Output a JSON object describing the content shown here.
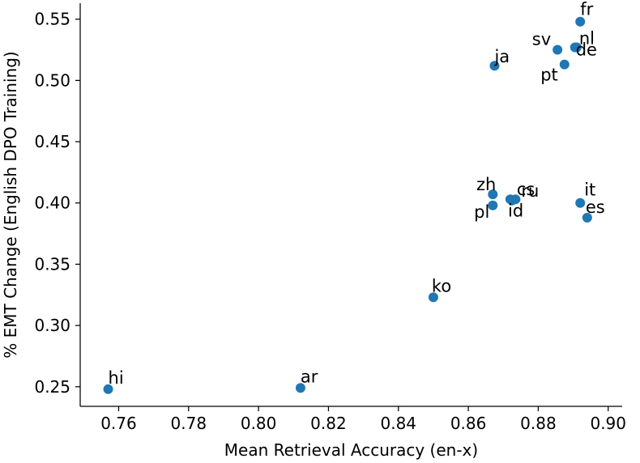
{
  "chart_data": {
    "type": "scatter",
    "title": "",
    "xlabel": "Mean Retrieval Accuracy (en-x)",
    "ylabel": "% EMT Change (English DPO Training)",
    "xlim": [
      0.749,
      0.904
    ],
    "ylim": [
      0.234,
      0.563
    ],
    "xticks": [
      "0.76",
      "0.78",
      "0.80",
      "0.82",
      "0.84",
      "0.86",
      "0.88",
      "0.90"
    ],
    "yticks": [
      "0.25",
      "0.30",
      "0.35",
      "0.40",
      "0.45",
      "0.50",
      "0.55"
    ],
    "grid": false,
    "marker_color": "#1f77b4",
    "points": [
      {
        "label": "fr",
        "x": 0.892,
        "y": 0.548
      },
      {
        "label": "nl",
        "x": 0.891,
        "y": 0.527
      },
      {
        "label": "sv",
        "x": 0.8855,
        "y": 0.525
      },
      {
        "label": "de",
        "x": 0.8905,
        "y": 0.527
      },
      {
        "label": "pt",
        "x": 0.8875,
        "y": 0.513
      },
      {
        "label": "ja",
        "x": 0.8675,
        "y": 0.512
      },
      {
        "label": "zh",
        "x": 0.867,
        "y": 0.407
      },
      {
        "label": "cs",
        "x": 0.872,
        "y": 0.403
      },
      {
        "label": "ru",
        "x": 0.8735,
        "y": 0.403
      },
      {
        "label": "pl",
        "x": 0.867,
        "y": 0.398
      },
      {
        "label": "id",
        "x": 0.8725,
        "y": 0.402
      },
      {
        "label": "it",
        "x": 0.892,
        "y": 0.4
      },
      {
        "label": "es",
        "x": 0.894,
        "y": 0.388
      },
      {
        "label": "ko",
        "x": 0.85,
        "y": 0.323
      },
      {
        "label": "ar",
        "x": 0.812,
        "y": 0.249
      },
      {
        "label": "hi",
        "x": 0.757,
        "y": 0.248
      }
    ]
  }
}
